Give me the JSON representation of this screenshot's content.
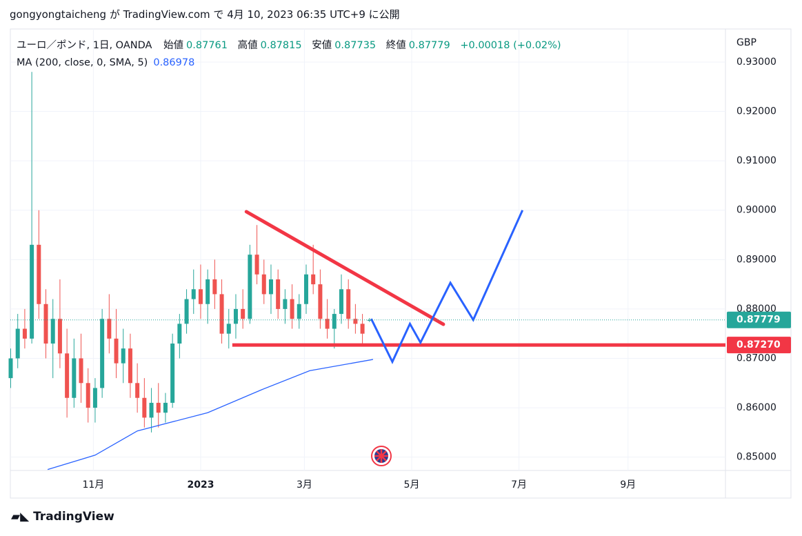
{
  "chart_data": {
    "type": "candlestick",
    "header": "gongyongtaicheng が TradingView.com で 4月 10, 2023 06:35 UTC+9 に公開",
    "symbol": "ユーロ／ポンド, 1日, OANDA",
    "ohlc_labels": [
      "始値",
      "高値",
      "安値",
      "終値"
    ],
    "change": "+0.00018 (+0.02%)",
    "axis_unit": "GBP",
    "footer": "TradingView",
    "up_color": "#26a69a",
    "down_color": "#ef5350",
    "x": [
      -108,
      -104,
      -100,
      -96,
      -92,
      -88,
      -84,
      -80,
      -76,
      -72,
      -68,
      -64,
      -60,
      -56,
      -52,
      -48,
      -44,
      -40,
      -36,
      -32,
      -28,
      -24,
      -20,
      -16,
      -12,
      -8,
      -4,
      0,
      4,
      8,
      12,
      16,
      20,
      24,
      28,
      32,
      36,
      40,
      44,
      48,
      52,
      56,
      60,
      64,
      68,
      72,
      76,
      80,
      84,
      88,
      92,
      96
    ],
    "open": [
      0.866,
      0.87,
      0.876,
      0.874,
      0.893,
      0.881,
      0.873,
      0.878,
      0.871,
      0.862,
      0.87,
      0.865,
      0.86,
      0.864,
      0.878,
      0.874,
      0.869,
      0.872,
      0.865,
      0.862,
      0.858,
      0.861,
      0.859,
      0.861,
      0.873,
      0.877,
      0.882,
      0.884,
      0.881,
      0.886,
      0.883,
      0.875,
      0.877,
      0.88,
      0.878,
      0.891,
      0.887,
      0.883,
      0.886,
      0.88,
      0.882,
      0.878,
      0.881,
      0.887,
      0.885,
      0.878,
      0.876,
      0.879,
      0.884,
      0.878,
      0.877,
      0.87761
    ],
    "high": [
      0.872,
      0.879,
      0.88,
      0.928,
      0.9,
      0.884,
      0.882,
      0.886,
      0.876,
      0.874,
      0.875,
      0.868,
      0.866,
      0.88,
      0.883,
      0.88,
      0.876,
      0.875,
      0.869,
      0.866,
      0.864,
      0.865,
      0.863,
      0.875,
      0.879,
      0.884,
      0.888,
      0.889,
      0.888,
      0.89,
      0.886,
      0.88,
      0.883,
      0.884,
      0.893,
      0.897,
      0.89,
      0.889,
      0.888,
      0.884,
      0.885,
      0.883,
      0.889,
      0.893,
      0.888,
      0.882,
      0.88,
      0.887,
      0.886,
      0.881,
      0.879,
      0.87815
    ],
    "low": [
      0.864,
      0.868,
      0.872,
      0.873,
      0.878,
      0.87,
      0.866,
      0.868,
      0.858,
      0.86,
      0.861,
      0.857,
      0.857,
      0.862,
      0.871,
      0.866,
      0.865,
      0.862,
      0.859,
      0.856,
      0.855,
      0.856,
      0.857,
      0.86,
      0.87,
      0.875,
      0.879,
      0.878,
      0.877,
      0.88,
      0.873,
      0.872,
      0.874,
      0.876,
      0.877,
      0.885,
      0.881,
      0.879,
      0.878,
      0.877,
      0.876,
      0.876,
      0.879,
      0.883,
      0.876,
      0.874,
      0.872,
      0.877,
      0.876,
      0.875,
      0.873,
      0.87735
    ],
    "close": [
      0.87,
      0.876,
      0.874,
      0.893,
      0.881,
      0.873,
      0.878,
      0.871,
      0.862,
      0.87,
      0.865,
      0.86,
      0.864,
      0.878,
      0.874,
      0.869,
      0.872,
      0.865,
      0.862,
      0.858,
      0.861,
      0.859,
      0.861,
      0.873,
      0.877,
      0.882,
      0.884,
      0.881,
      0.886,
      0.883,
      0.875,
      0.877,
      0.88,
      0.878,
      0.891,
      0.887,
      0.883,
      0.886,
      0.88,
      0.882,
      0.878,
      0.881,
      0.887,
      0.885,
      0.878,
      0.876,
      0.879,
      0.884,
      0.878,
      0.877,
      0.875,
      0.87779
    ],
    "ma": {
      "name": "MA (200, close, 0, SMA, 5)",
      "color": "#2962ff",
      "x": [
        -87,
        -60,
        -36,
        4,
        35,
        62,
        98
      ],
      "values": [
        0.8475,
        0.8504,
        0.8553,
        0.859,
        0.8637,
        0.8675,
        0.86978
      ]
    },
    "drawings": {
      "trendline": {
        "color": "#f23645",
        "x": [
          26,
          138
        ],
        "values": [
          0.8997,
          0.8769
        ]
      },
      "support": {
        "color": "#f23645",
        "x_start": 18,
        "value": {
          "value": 0.8727,
          "label": "0.87270"
        }
      },
      "projection": {
        "color": "#2962ff",
        "x": [
          97,
          109,
          119,
          125,
          142,
          155,
          183
        ],
        "values": [
          0.878,
          0.8693,
          0.877,
          0.8732,
          0.8853,
          0.8778,
          0.9
        ]
      }
    },
    "xlim": [
      -108.2,
      298.4
    ],
    "xticks": [
      {
        "value": -61,
        "label": "11月"
      },
      {
        "value": 0,
        "label": "2023"
      },
      {
        "value": 59,
        "label": "3月"
      },
      {
        "value": 120,
        "label": "5月"
      },
      {
        "value": 181,
        "label": "7月"
      },
      {
        "value": 243,
        "label": "9月"
      }
    ],
    "ylim": [
      0.8473,
      0.9367
    ],
    "yticks": [
      {
        "value": 0.85,
        "label": "0.85000"
      },
      {
        "value": 0.86,
        "label": "0.86000"
      },
      {
        "value": 0.87,
        "label": "0.87000"
      },
      {
        "value": 0.88,
        "label": "0.88000"
      },
      {
        "value": 0.89,
        "label": "0.89000"
      },
      {
        "value": 0.9,
        "label": "0.90000"
      },
      {
        "value": 0.91,
        "label": "0.91000"
      },
      {
        "value": 0.92,
        "label": "0.92000"
      },
      {
        "value": 0.93,
        "label": "0.93000"
      }
    ]
  }
}
